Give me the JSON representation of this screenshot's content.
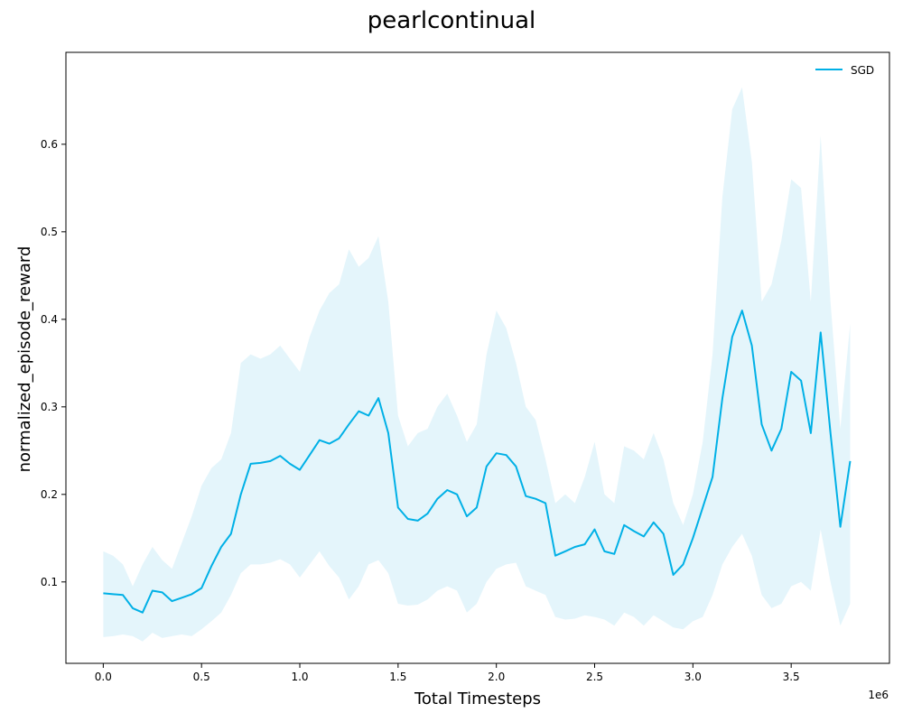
{
  "chart_data": {
    "type": "line",
    "title": "pearlcontinual",
    "xlabel": "Total Timesteps",
    "ylabel": "normalized_episode_reward",
    "x_offset_label": "1e6",
    "xlim": [
      -0.19,
      4.0
    ],
    "ylim": [
      0.007,
      0.705
    ],
    "x_ticks": [
      0.0,
      0.5,
      1.0,
      1.5,
      2.0,
      2.5,
      3.0,
      3.5
    ],
    "x_tick_labels": [
      "0.0",
      "0.5",
      "1.0",
      "1.5",
      "2.0",
      "2.5",
      "3.0",
      "3.5"
    ],
    "y_ticks": [
      0.1,
      0.2,
      0.3,
      0.4,
      0.5,
      0.6
    ],
    "y_tick_labels": [
      "0.1",
      "0.2",
      "0.3",
      "0.4",
      "0.5",
      "0.6"
    ],
    "grid": false,
    "legend_position": "top-right",
    "series": [
      {
        "name": "SGD",
        "color": "#00b0e6",
        "band_color": "#e4f5fb",
        "x": [
          0.0,
          0.05,
          0.1,
          0.15,
          0.2,
          0.25,
          0.3,
          0.35,
          0.4,
          0.45,
          0.5,
          0.55,
          0.6,
          0.65,
          0.7,
          0.75,
          0.8,
          0.85,
          0.9,
          0.95,
          1.0,
          1.05,
          1.1,
          1.15,
          1.2,
          1.25,
          1.3,
          1.35,
          1.4,
          1.45,
          1.5,
          1.55,
          1.6,
          1.65,
          1.7,
          1.75,
          1.8,
          1.85,
          1.9,
          1.95,
          2.0,
          2.05,
          2.1,
          2.15,
          2.2,
          2.25,
          2.3,
          2.35,
          2.4,
          2.45,
          2.5,
          2.55,
          2.6,
          2.65,
          2.7,
          2.75,
          2.8,
          2.85,
          2.9,
          2.95,
          3.0,
          3.05,
          3.1,
          3.15,
          3.2,
          3.25,
          3.3,
          3.35,
          3.4,
          3.45,
          3.5,
          3.55,
          3.6,
          3.65,
          3.7,
          3.75,
          3.8
        ],
        "mean": [
          0.087,
          0.086,
          0.085,
          0.07,
          0.065,
          0.09,
          0.088,
          0.078,
          0.082,
          0.086,
          0.093,
          0.118,
          0.14,
          0.155,
          0.2,
          0.235,
          0.236,
          0.238,
          0.244,
          0.235,
          0.228,
          0.245,
          0.262,
          0.258,
          0.264,
          0.28,
          0.295,
          0.29,
          0.31,
          0.27,
          0.185,
          0.172,
          0.17,
          0.178,
          0.195,
          0.205,
          0.2,
          0.175,
          0.185,
          0.232,
          0.247,
          0.245,
          0.232,
          0.198,
          0.195,
          0.19,
          0.13,
          0.135,
          0.14,
          0.143,
          0.16,
          0.135,
          0.132,
          0.165,
          0.158,
          0.152,
          0.168,
          0.155,
          0.108,
          0.12,
          0.15,
          0.185,
          0.22,
          0.31,
          0.38,
          0.41,
          0.37,
          0.28,
          0.25,
          0.275,
          0.34,
          0.33,
          0.27,
          0.385,
          0.27,
          0.163,
          0.238
        ],
        "upper": [
          0.135,
          0.13,
          0.12,
          0.095,
          0.12,
          0.14,
          0.125,
          0.115,
          0.145,
          0.175,
          0.21,
          0.23,
          0.24,
          0.27,
          0.35,
          0.36,
          0.355,
          0.36,
          0.37,
          0.355,
          0.34,
          0.38,
          0.41,
          0.43,
          0.44,
          0.48,
          0.46,
          0.47,
          0.495,
          0.42,
          0.29,
          0.255,
          0.27,
          0.275,
          0.3,
          0.315,
          0.29,
          0.26,
          0.28,
          0.36,
          0.41,
          0.39,
          0.35,
          0.3,
          0.285,
          0.24,
          0.19,
          0.2,
          0.19,
          0.22,
          0.26,
          0.2,
          0.19,
          0.255,
          0.25,
          0.24,
          0.27,
          0.24,
          0.19,
          0.165,
          0.2,
          0.26,
          0.36,
          0.54,
          0.64,
          0.665,
          0.58,
          0.42,
          0.44,
          0.49,
          0.56,
          0.55,
          0.42,
          0.61,
          0.42,
          0.275,
          0.395
        ],
        "lower": [
          0.037,
          0.038,
          0.04,
          0.038,
          0.032,
          0.042,
          0.036,
          0.038,
          0.04,
          0.038,
          0.046,
          0.055,
          0.065,
          0.085,
          0.11,
          0.12,
          0.12,
          0.122,
          0.126,
          0.12,
          0.105,
          0.12,
          0.135,
          0.118,
          0.105,
          0.08,
          0.095,
          0.12,
          0.125,
          0.11,
          0.075,
          0.073,
          0.074,
          0.08,
          0.09,
          0.095,
          0.09,
          0.065,
          0.075,
          0.1,
          0.115,
          0.12,
          0.122,
          0.095,
          0.09,
          0.085,
          0.06,
          0.057,
          0.058,
          0.062,
          0.06,
          0.057,
          0.05,
          0.065,
          0.06,
          0.05,
          0.062,
          0.055,
          0.048,
          0.046,
          0.055,
          0.06,
          0.085,
          0.12,
          0.14,
          0.155,
          0.13,
          0.085,
          0.07,
          0.075,
          0.095,
          0.1,
          0.09,
          0.16,
          0.1,
          0.05,
          0.075
        ]
      }
    ]
  }
}
